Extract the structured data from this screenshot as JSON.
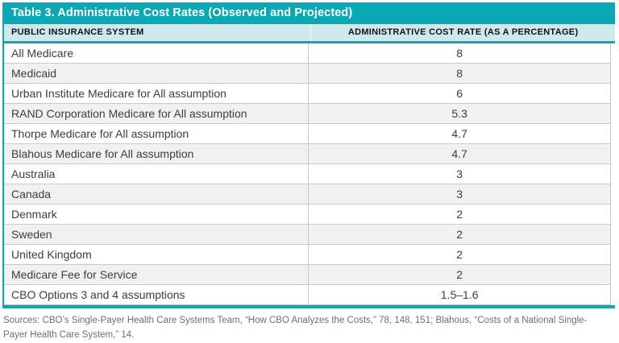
{
  "table": {
    "title": "Table 3. Administrative Cost Rates (Observed and Projected)",
    "columns": {
      "system": "PUBLIC INSURANCE SYSTEM",
      "rate": "ADMINISTRATIVE COST RATE (AS A PERCENTAGE)"
    },
    "rows": [
      {
        "system": "All Medicare",
        "rate": "8"
      },
      {
        "system": "Medicaid",
        "rate": "8"
      },
      {
        "system": "Urban Institute Medicare for All assumption",
        "rate": "6"
      },
      {
        "system": "RAND Corporation Medicare for All assumption",
        "rate": "5.3"
      },
      {
        "system": "Thorpe Medicare for All assumption",
        "rate": "4.7"
      },
      {
        "system": "Blahous Medicare for All assumption",
        "rate": "4.7"
      },
      {
        "system": "Australia",
        "rate": "3"
      },
      {
        "system": "Canada",
        "rate": "3"
      },
      {
        "system": "Denmark",
        "rate": "2"
      },
      {
        "system": "Sweden",
        "rate": "2"
      },
      {
        "system": "United Kingdom",
        "rate": "2"
      },
      {
        "system": "Medicare Fee for Service",
        "rate": "2"
      },
      {
        "system": "CBO Options 3 and 4 assumptions",
        "rate": "1.5–1.6"
      }
    ],
    "sources": "Sources: CBO’s Single-Payer Health Care Systems Team, “How CBO Analyzes the Costs,” 78, 148, 151; Blahous, “Costs of a National Single-Payer Health Care System,” 14."
  },
  "colors": {
    "accent_teal": "#0aa7b5",
    "header_background": "#cee9ec",
    "alternate_row": "#f1f1f2",
    "grid_line": "#c9c9c9"
  }
}
